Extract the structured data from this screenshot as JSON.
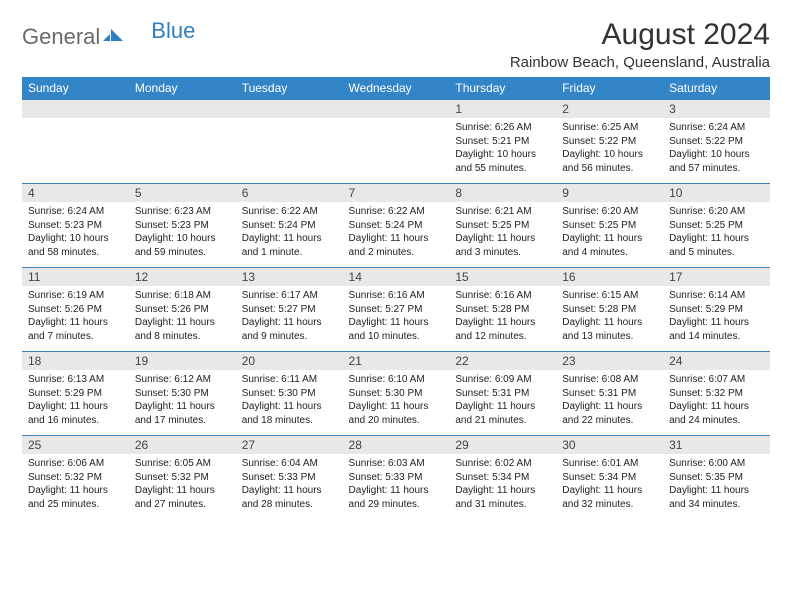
{
  "logo": {
    "text_general": "General",
    "text_blue": "Blue",
    "icon_fill": "#2f7fbf"
  },
  "header": {
    "month_title": "August 2024",
    "location": "Rainbow Beach, Queensland, Australia"
  },
  "colors": {
    "header_bg": "#3485c7",
    "header_text": "#ffffff",
    "daynum_bg": "#e8e8e8",
    "row_border": "#3a7fb5",
    "body_text": "#222222"
  },
  "day_names": [
    "Sunday",
    "Monday",
    "Tuesday",
    "Wednesday",
    "Thursday",
    "Friday",
    "Saturday"
  ],
  "weeks": [
    [
      {
        "num": "",
        "sunrise": "",
        "sunset": "",
        "daylight1": "",
        "daylight2": ""
      },
      {
        "num": "",
        "sunrise": "",
        "sunset": "",
        "daylight1": "",
        "daylight2": ""
      },
      {
        "num": "",
        "sunrise": "",
        "sunset": "",
        "daylight1": "",
        "daylight2": ""
      },
      {
        "num": "",
        "sunrise": "",
        "sunset": "",
        "daylight1": "",
        "daylight2": ""
      },
      {
        "num": "1",
        "sunrise": "Sunrise: 6:26 AM",
        "sunset": "Sunset: 5:21 PM",
        "daylight1": "Daylight: 10 hours",
        "daylight2": "and 55 minutes."
      },
      {
        "num": "2",
        "sunrise": "Sunrise: 6:25 AM",
        "sunset": "Sunset: 5:22 PM",
        "daylight1": "Daylight: 10 hours",
        "daylight2": "and 56 minutes."
      },
      {
        "num": "3",
        "sunrise": "Sunrise: 6:24 AM",
        "sunset": "Sunset: 5:22 PM",
        "daylight1": "Daylight: 10 hours",
        "daylight2": "and 57 minutes."
      }
    ],
    [
      {
        "num": "4",
        "sunrise": "Sunrise: 6:24 AM",
        "sunset": "Sunset: 5:23 PM",
        "daylight1": "Daylight: 10 hours",
        "daylight2": "and 58 minutes."
      },
      {
        "num": "5",
        "sunrise": "Sunrise: 6:23 AM",
        "sunset": "Sunset: 5:23 PM",
        "daylight1": "Daylight: 10 hours",
        "daylight2": "and 59 minutes."
      },
      {
        "num": "6",
        "sunrise": "Sunrise: 6:22 AM",
        "sunset": "Sunset: 5:24 PM",
        "daylight1": "Daylight: 11 hours",
        "daylight2": "and 1 minute."
      },
      {
        "num": "7",
        "sunrise": "Sunrise: 6:22 AM",
        "sunset": "Sunset: 5:24 PM",
        "daylight1": "Daylight: 11 hours",
        "daylight2": "and 2 minutes."
      },
      {
        "num": "8",
        "sunrise": "Sunrise: 6:21 AM",
        "sunset": "Sunset: 5:25 PM",
        "daylight1": "Daylight: 11 hours",
        "daylight2": "and 3 minutes."
      },
      {
        "num": "9",
        "sunrise": "Sunrise: 6:20 AM",
        "sunset": "Sunset: 5:25 PM",
        "daylight1": "Daylight: 11 hours",
        "daylight2": "and 4 minutes."
      },
      {
        "num": "10",
        "sunrise": "Sunrise: 6:20 AM",
        "sunset": "Sunset: 5:25 PM",
        "daylight1": "Daylight: 11 hours",
        "daylight2": "and 5 minutes."
      }
    ],
    [
      {
        "num": "11",
        "sunrise": "Sunrise: 6:19 AM",
        "sunset": "Sunset: 5:26 PM",
        "daylight1": "Daylight: 11 hours",
        "daylight2": "and 7 minutes."
      },
      {
        "num": "12",
        "sunrise": "Sunrise: 6:18 AM",
        "sunset": "Sunset: 5:26 PM",
        "daylight1": "Daylight: 11 hours",
        "daylight2": "and 8 minutes."
      },
      {
        "num": "13",
        "sunrise": "Sunrise: 6:17 AM",
        "sunset": "Sunset: 5:27 PM",
        "daylight1": "Daylight: 11 hours",
        "daylight2": "and 9 minutes."
      },
      {
        "num": "14",
        "sunrise": "Sunrise: 6:16 AM",
        "sunset": "Sunset: 5:27 PM",
        "daylight1": "Daylight: 11 hours",
        "daylight2": "and 10 minutes."
      },
      {
        "num": "15",
        "sunrise": "Sunrise: 6:16 AM",
        "sunset": "Sunset: 5:28 PM",
        "daylight1": "Daylight: 11 hours",
        "daylight2": "and 12 minutes."
      },
      {
        "num": "16",
        "sunrise": "Sunrise: 6:15 AM",
        "sunset": "Sunset: 5:28 PM",
        "daylight1": "Daylight: 11 hours",
        "daylight2": "and 13 minutes."
      },
      {
        "num": "17",
        "sunrise": "Sunrise: 6:14 AM",
        "sunset": "Sunset: 5:29 PM",
        "daylight1": "Daylight: 11 hours",
        "daylight2": "and 14 minutes."
      }
    ],
    [
      {
        "num": "18",
        "sunrise": "Sunrise: 6:13 AM",
        "sunset": "Sunset: 5:29 PM",
        "daylight1": "Daylight: 11 hours",
        "daylight2": "and 16 minutes."
      },
      {
        "num": "19",
        "sunrise": "Sunrise: 6:12 AM",
        "sunset": "Sunset: 5:30 PM",
        "daylight1": "Daylight: 11 hours",
        "daylight2": "and 17 minutes."
      },
      {
        "num": "20",
        "sunrise": "Sunrise: 6:11 AM",
        "sunset": "Sunset: 5:30 PM",
        "daylight1": "Daylight: 11 hours",
        "daylight2": "and 18 minutes."
      },
      {
        "num": "21",
        "sunrise": "Sunrise: 6:10 AM",
        "sunset": "Sunset: 5:30 PM",
        "daylight1": "Daylight: 11 hours",
        "daylight2": "and 20 minutes."
      },
      {
        "num": "22",
        "sunrise": "Sunrise: 6:09 AM",
        "sunset": "Sunset: 5:31 PM",
        "daylight1": "Daylight: 11 hours",
        "daylight2": "and 21 minutes."
      },
      {
        "num": "23",
        "sunrise": "Sunrise: 6:08 AM",
        "sunset": "Sunset: 5:31 PM",
        "daylight1": "Daylight: 11 hours",
        "daylight2": "and 22 minutes."
      },
      {
        "num": "24",
        "sunrise": "Sunrise: 6:07 AM",
        "sunset": "Sunset: 5:32 PM",
        "daylight1": "Daylight: 11 hours",
        "daylight2": "and 24 minutes."
      }
    ],
    [
      {
        "num": "25",
        "sunrise": "Sunrise: 6:06 AM",
        "sunset": "Sunset: 5:32 PM",
        "daylight1": "Daylight: 11 hours",
        "daylight2": "and 25 minutes."
      },
      {
        "num": "26",
        "sunrise": "Sunrise: 6:05 AM",
        "sunset": "Sunset: 5:32 PM",
        "daylight1": "Daylight: 11 hours",
        "daylight2": "and 27 minutes."
      },
      {
        "num": "27",
        "sunrise": "Sunrise: 6:04 AM",
        "sunset": "Sunset: 5:33 PM",
        "daylight1": "Daylight: 11 hours",
        "daylight2": "and 28 minutes."
      },
      {
        "num": "28",
        "sunrise": "Sunrise: 6:03 AM",
        "sunset": "Sunset: 5:33 PM",
        "daylight1": "Daylight: 11 hours",
        "daylight2": "and 29 minutes."
      },
      {
        "num": "29",
        "sunrise": "Sunrise: 6:02 AM",
        "sunset": "Sunset: 5:34 PM",
        "daylight1": "Daylight: 11 hours",
        "daylight2": "and 31 minutes."
      },
      {
        "num": "30",
        "sunrise": "Sunrise: 6:01 AM",
        "sunset": "Sunset: 5:34 PM",
        "daylight1": "Daylight: 11 hours",
        "daylight2": "and 32 minutes."
      },
      {
        "num": "31",
        "sunrise": "Sunrise: 6:00 AM",
        "sunset": "Sunset: 5:35 PM",
        "daylight1": "Daylight: 11 hours",
        "daylight2": "and 34 minutes."
      }
    ]
  ]
}
